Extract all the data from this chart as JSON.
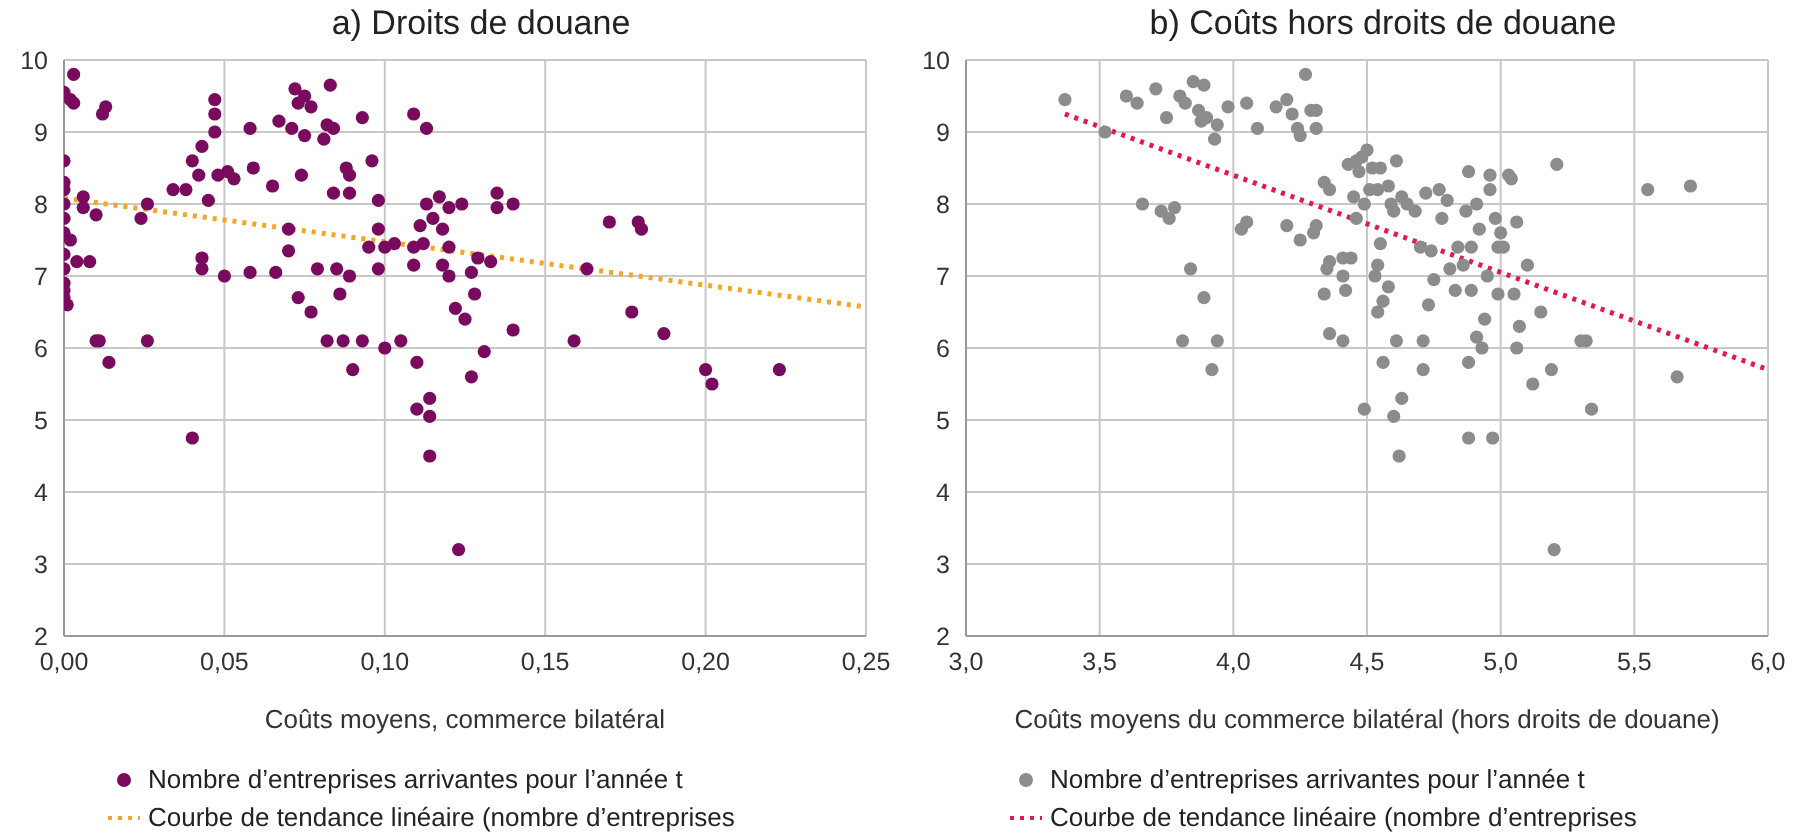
{
  "chart_data": [
    {
      "type": "scatter",
      "title": "a) Droits de douane",
      "xlabel": "Coûts moyens, commerce bilatéral",
      "xlim": [
        0,
        0.25
      ],
      "xticks": [
        {
          "value": 0,
          "label": "0,00"
        },
        {
          "value": 0.05,
          "label": "0,05"
        },
        {
          "value": 0.1,
          "label": "0,10"
        },
        {
          "value": 0.15,
          "label": "0,15"
        },
        {
          "value": 0.2,
          "label": "0,20"
        },
        {
          "value": 0.25,
          "label": "0,25"
        }
      ],
      "ylim": [
        2,
        10
      ],
      "yticks": [
        2,
        3,
        4,
        5,
        6,
        7,
        8,
        9,
        10
      ],
      "grid": true,
      "legend": "bottom",
      "marker": "circle",
      "series": [
        {
          "name": "Nombre d’entreprises arrivantes pour l’année t",
          "color": "#7a0a5e",
          "x": [
            0.0,
            0.002,
            0.003,
            0.003,
            0.0,
            0.0,
            0.0,
            0.0,
            0.0,
            0.0,
            0.002,
            0.0,
            0.0,
            0.0,
            0.0,
            0.0,
            0.001,
            0.004,
            0.008,
            0.006,
            0.006,
            0.01,
            0.012,
            0.013,
            0.01,
            0.011,
            0.014,
            0.024,
            0.026,
            0.026,
            0.034,
            0.038,
            0.04,
            0.042,
            0.043,
            0.043,
            0.043,
            0.045,
            0.047,
            0.047,
            0.047,
            0.048,
            0.05,
            0.051,
            0.053,
            0.04,
            0.058,
            0.058,
            0.059,
            0.065,
            0.066,
            0.067,
            0.07,
            0.07,
            0.071,
            0.072,
            0.073,
            0.073,
            0.074,
            0.075,
            0.075,
            0.077,
            0.077,
            0.079,
            0.081,
            0.082,
            0.082,
            0.083,
            0.084,
            0.084,
            0.085,
            0.086,
            0.087,
            0.088,
            0.089,
            0.089,
            0.089,
            0.09,
            0.093,
            0.093,
            0.095,
            0.096,
            0.098,
            0.098,
            0.098,
            0.1,
            0.1,
            0.103,
            0.105,
            0.109,
            0.109,
            0.109,
            0.11,
            0.11,
            0.111,
            0.112,
            0.113,
            0.113,
            0.114,
            0.114,
            0.114,
            0.115,
            0.117,
            0.118,
            0.118,
            0.12,
            0.12,
            0.12,
            0.122,
            0.123,
            0.124,
            0.125,
            0.127,
            0.127,
            0.128,
            0.129,
            0.131,
            0.133,
            0.135,
            0.135,
            0.14,
            0.14,
            0.159,
            0.163,
            0.17,
            0.177,
            0.179,
            0.18,
            0.187,
            0.2,
            0.202,
            0.223
          ],
          "values": [
            9.55,
            9.45,
            9.4,
            9.8,
            8.6,
            8.3,
            8.2,
            8.0,
            7.8,
            7.6,
            7.5,
            7.3,
            7.1,
            6.9,
            6.8,
            6.7,
            6.6,
            7.2,
            7.2,
            8.1,
            7.95,
            7.85,
            9.25,
            9.35,
            6.1,
            6.1,
            5.8,
            7.8,
            8.0,
            6.1,
            8.2,
            8.2,
            8.6,
            8.4,
            8.8,
            7.25,
            7.1,
            8.05,
            9.45,
            9.25,
            9.0,
            8.4,
            7.0,
            8.45,
            8.35,
            4.75,
            9.05,
            7.05,
            8.5,
            8.25,
            7.05,
            9.15,
            7.65,
            7.35,
            9.05,
            9.6,
            9.4,
            6.7,
            8.4,
            8.95,
            9.5,
            9.35,
            6.5,
            7.1,
            8.9,
            9.1,
            6.1,
            9.65,
            8.15,
            9.05,
            7.1,
            6.75,
            6.1,
            8.5,
            8.4,
            8.15,
            7.0,
            5.7,
            9.2,
            6.1,
            7.4,
            8.6,
            8.05,
            7.65,
            7.1,
            7.4,
            6.0,
            7.45,
            6.1,
            9.25,
            7.4,
            7.15,
            5.15,
            5.8,
            7.7,
            7.45,
            9.05,
            8.0,
            5.3,
            5.05,
            4.5,
            7.8,
            8.1,
            7.65,
            7.15,
            7.95,
            7.4,
            7.0,
            6.55,
            3.2,
            8.0,
            6.4,
            7.05,
            5.6,
            6.75,
            7.25,
            5.95,
            7.2,
            8.15,
            7.95,
            8.0,
            6.25,
            6.1,
            7.1,
            7.75,
            6.5,
            7.75,
            7.65,
            6.2,
            5.7,
            5.5,
            5.7
          ]
        },
        {
          "name": "Courbe de tendance linéaire (nombre d’entreprises",
          "type": "line",
          "color": "#f5a623",
          "line_style": "dotted",
          "marker": "none",
          "x": [
            0,
            0.25
          ],
          "values": [
            8.08,
            6.57
          ]
        }
      ]
    },
    {
      "type": "scatter",
      "title": "b) Coûts hors droits de douane",
      "xlabel": "Coûts moyens du commerce bilatéral (hors droits de douane)",
      "xlim": [
        3,
        6
      ],
      "xticks": [
        {
          "value": 3,
          "label": "3,0"
        },
        {
          "value": 3.5,
          "label": "3,5"
        },
        {
          "value": 4,
          "label": "4,0"
        },
        {
          "value": 4.5,
          "label": "4,5"
        },
        {
          "value": 5,
          "label": "5,0"
        },
        {
          "value": 5.5,
          "label": "5,5"
        },
        {
          "value": 6,
          "label": "6,0"
        }
      ],
      "ylim": [
        2,
        10
      ],
      "yticks": [
        2,
        3,
        4,
        5,
        6,
        7,
        8,
        9,
        10
      ],
      "grid": true,
      "legend": "bottom",
      "marker": "circle",
      "series": [
        {
          "name": "Nombre d’entreprises arrivantes pour l’année t",
          "color": "#8c8c8c",
          "x": [
            3.37,
            3.52,
            3.6,
            3.64,
            3.71,
            3.75,
            3.8,
            3.82,
            3.85,
            3.87,
            3.88,
            3.89,
            3.9,
            3.94,
            3.93,
            3.98,
            4.05,
            4.09,
            4.16,
            4.2,
            4.22,
            4.24,
            4.25,
            4.27,
            4.29,
            4.31,
            4.31,
            3.66,
            3.73,
            3.76,
            3.78,
            3.84,
            3.81,
            3.89,
            3.94,
            3.92,
            4.03,
            4.05,
            4.2,
            4.25,
            4.3,
            4.31,
            4.34,
            4.36,
            4.35,
            4.36,
            4.34,
            4.36,
            4.41,
            4.41,
            4.41,
            4.42,
            4.43,
            4.44,
            4.45,
            4.46,
            4.47,
            4.48,
            4.46,
            4.49,
            4.5,
            4.51,
            4.52,
            4.54,
            4.55,
            4.53,
            4.54,
            4.55,
            4.54,
            4.56,
            4.56,
            4.49,
            4.58,
            4.59,
            4.6,
            4.61,
            4.63,
            4.65,
            4.58,
            4.61,
            4.6,
            4.63,
            4.62,
            4.68,
            4.7,
            4.72,
            4.71,
            4.71,
            4.73,
            4.74,
            4.75,
            4.77,
            4.78,
            4.8,
            4.81,
            4.83,
            4.84,
            4.86,
            4.87,
            4.88,
            4.88,
            4.88,
            4.89,
            4.89,
            4.91,
            4.92,
            4.91,
            4.93,
            4.94,
            4.95,
            4.96,
            4.96,
            4.97,
            4.98,
            4.99,
            4.99,
            5.0,
            5.01,
            5.03,
            5.04,
            5.05,
            5.06,
            5.06,
            5.07,
            5.1,
            5.12,
            5.15,
            5.19,
            5.2,
            5.21,
            5.3,
            5.32,
            5.34,
            5.55,
            5.66,
            5.71
          ],
          "values": [
            9.45,
            9.0,
            9.5,
            9.4,
            9.6,
            9.2,
            9.5,
            9.4,
            9.7,
            9.3,
            9.15,
            9.65,
            9.2,
            9.1,
            8.9,
            9.35,
            9.4,
            9.05,
            9.35,
            9.45,
            9.25,
            9.05,
            8.95,
            9.8,
            9.3,
            9.05,
            9.3,
            8.0,
            7.9,
            7.8,
            7.95,
            7.1,
            6.1,
            6.7,
            6.1,
            5.7,
            7.65,
            7.75,
            7.7,
            7.5,
            7.6,
            7.7,
            8.3,
            8.2,
            7.1,
            7.2,
            6.75,
            6.2,
            7.25,
            7.0,
            6.1,
            6.8,
            8.55,
            7.25,
            8.1,
            8.6,
            8.45,
            8.65,
            7.8,
            8.0,
            8.75,
            8.2,
            8.5,
            8.2,
            8.5,
            7.0,
            7.15,
            7.45,
            6.5,
            6.65,
            5.8,
            5.15,
            8.25,
            8.0,
            7.9,
            8.6,
            8.1,
            8.0,
            6.85,
            6.1,
            5.05,
            5.3,
            4.5,
            7.9,
            7.4,
            8.15,
            6.1,
            5.7,
            6.6,
            7.35,
            6.95,
            8.2,
            7.8,
            8.05,
            7.1,
            6.8,
            7.4,
            7.15,
            7.9,
            8.45,
            5.8,
            4.75,
            7.4,
            6.8,
            8.0,
            7.65,
            6.15,
            6.0,
            6.4,
            7.0,
            8.4,
            8.2,
            4.75,
            7.8,
            7.4,
            6.75,
            7.6,
            7.4,
            8.4,
            8.35,
            6.75,
            7.75,
            6.0,
            6.3,
            7.15,
            5.5,
            6.5,
            5.7,
            3.2,
            8.55,
            6.1,
            6.1,
            5.15,
            8.2,
            5.6,
            8.25
          ]
        },
        {
          "name": "Courbe de tendance linéaire (nombre d’entreprises",
          "type": "line",
          "color": "#e8174a",
          "line_style": "dotted",
          "marker": "none",
          "x": [
            3.37,
            6.0
          ],
          "values": [
            9.25,
            5.7
          ]
        }
      ]
    }
  ]
}
